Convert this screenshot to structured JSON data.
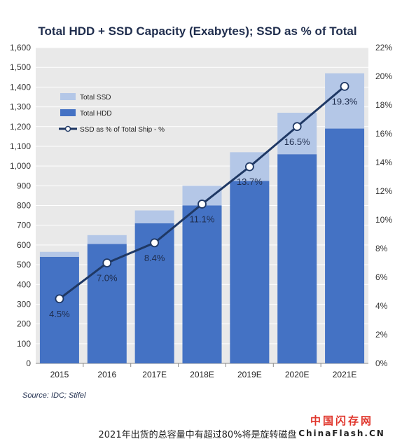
{
  "chart_data": {
    "type": "bar",
    "title": "Total  HDD + SSD Capacity (Exabytes); SSD as % of Total",
    "categories": [
      "2015",
      "2016",
      "2017E",
      "2018E",
      "2019E",
      "2020E",
      "2021E"
    ],
    "series": [
      {
        "name": "Total HDD",
        "type": "bar",
        "stack": "capacity",
        "color": "#4472c4",
        "values": [
          540,
          605,
          710,
          800,
          925,
          1060,
          1190
        ]
      },
      {
        "name": "Total SSD",
        "type": "bar",
        "stack": "capacity",
        "color": "#b4c7e7",
        "values": [
          25,
          45,
          65,
          100,
          145,
          210,
          280
        ]
      },
      {
        "name": "SSD as % of Total Ship - %",
        "type": "line",
        "axis": "right",
        "color": "#1f3864",
        "values": [
          4.5,
          7.0,
          8.4,
          11.1,
          13.7,
          16.5,
          19.3
        ],
        "labels": [
          "4.5%",
          "7.0%",
          "8.4%",
          "11.1%",
          "13.7%",
          "16.5%",
          "19.3%"
        ]
      }
    ],
    "ylim": [
      0,
      1600
    ],
    "y_ticks": [
      "0",
      "100",
      "200",
      "300",
      "400",
      "500",
      "600",
      "700",
      "800",
      "900",
      "1,000",
      "1,100",
      "1,200",
      "1,300",
      "1,400",
      "1,500",
      "1,600"
    ],
    "y2lim": [
      0,
      22
    ],
    "y2_ticks": [
      "0%",
      "2%",
      "4%",
      "6%",
      "8%",
      "10%",
      "12%",
      "14%",
      "16%",
      "18%",
      "20%",
      "22%"
    ],
    "grid": true,
    "legend_position": "top-left",
    "legend": [
      "Total SSD",
      "Total HDD",
      "SSD as % of Total Ship - %"
    ],
    "source": "Source: IDC; Stifel"
  },
  "caption": "2021年出货的总容量中有超过80%将是旋转磁盘",
  "watermark": {
    "brand": "中国闪存网",
    "site": "ChinaFlash.CN"
  },
  "colors": {
    "background": "#ffffff",
    "plot_background": "#e9e9e9",
    "grid": "#ffffff"
  }
}
